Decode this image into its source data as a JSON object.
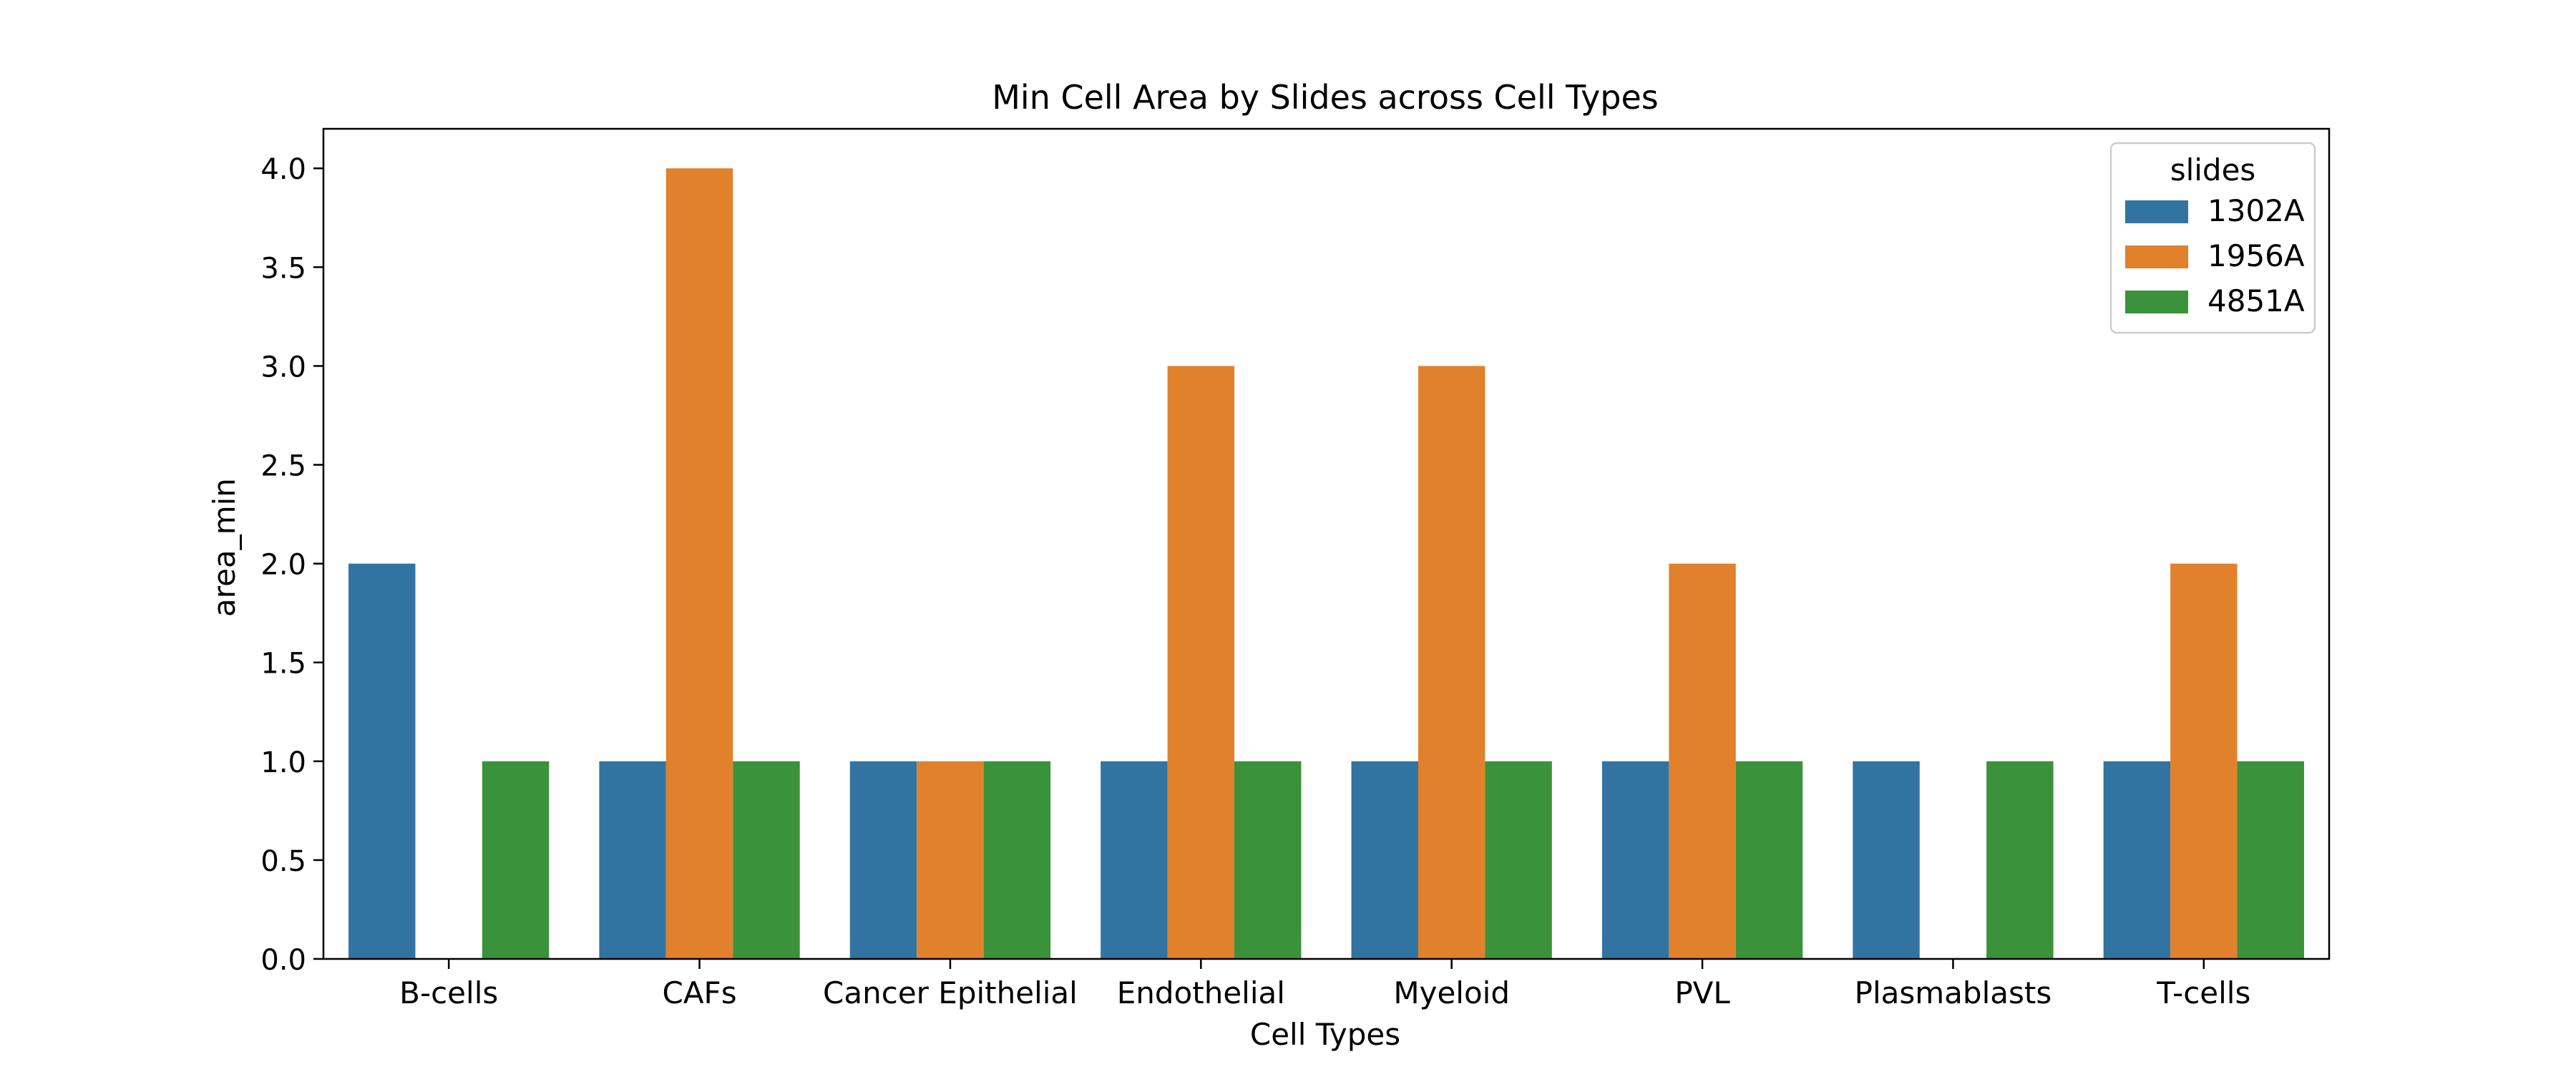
{
  "chart_data": {
    "type": "bar",
    "title": "Min Cell Area by Slides across Cell Types",
    "xlabel": "Cell Types",
    "ylabel": "area_min",
    "ylim": [
      0,
      4.2
    ],
    "yticks": [
      "0.0",
      "0.5",
      "1.0",
      "1.5",
      "2.0",
      "2.5",
      "3.0",
      "3.5",
      "4.0"
    ],
    "grid": false,
    "categories": [
      "B-cells",
      "CAFs",
      "Cancer Epithelial",
      "Endothelial",
      "Myeloid",
      "PVL",
      "Plasmablasts",
      "T-cells"
    ],
    "series": [
      {
        "name": "1302A",
        "color": "#3274a1",
        "values": [
          2,
          1,
          1,
          1,
          1,
          1,
          1,
          1
        ]
      },
      {
        "name": "1956A",
        "color": "#e1812c",
        "values": [
          null,
          4,
          1,
          3,
          3,
          2,
          null,
          2
        ]
      },
      {
        "name": "4851A",
        "color": "#3a923a",
        "values": [
          1,
          1,
          1,
          1,
          1,
          1,
          1,
          1
        ]
      }
    ],
    "legend": {
      "title": "slides",
      "placement": "top-right"
    }
  }
}
